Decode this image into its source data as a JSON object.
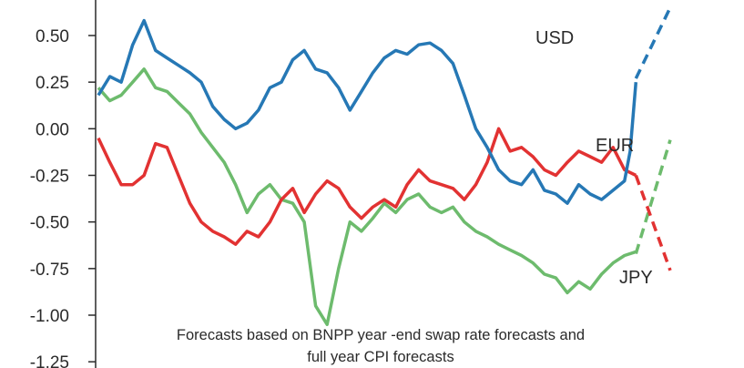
{
  "chart_data": {
    "type": "line",
    "ylim": [
      -1.25,
      0.65
    ],
    "yticks": [
      0.5,
      0.25,
      0.0,
      -0.25,
      -0.5,
      -0.75,
      -1.0,
      -1.25
    ],
    "ytick_labels": [
      "0.50",
      "0.25",
      "0.00",
      "-0.25",
      "-0.50",
      "-0.75",
      "-1.00",
      "-1.25"
    ],
    "x_range": [
      0,
      100
    ],
    "grid": false,
    "legend": "inline labels at line ends",
    "note_lines": [
      "Forecasts based on BNPP year -end swap rate forecasts and",
      "full year CPI forecasts"
    ],
    "series": [
      {
        "name": "USD",
        "color": "#2678b5",
        "history_x": [
          0,
          2,
          4,
          6,
          8,
          10,
          12,
          14,
          16,
          18,
          20,
          22,
          24,
          26,
          28,
          30,
          32,
          34,
          36,
          38,
          40,
          42,
          44,
          46,
          48,
          50,
          52,
          54,
          56,
          58,
          60,
          62,
          64,
          66,
          68,
          70,
          72,
          74,
          76,
          78,
          80,
          82,
          84,
          86,
          88,
          90,
          92,
          93,
          94
        ],
        "history_y": [
          0.18,
          0.28,
          0.25,
          0.45,
          0.58,
          0.42,
          0.38,
          0.34,
          0.3,
          0.25,
          0.12,
          0.05,
          0.0,
          0.03,
          0.1,
          0.22,
          0.25,
          0.37,
          0.42,
          0.32,
          0.3,
          0.22,
          0.1,
          0.2,
          0.3,
          0.38,
          0.42,
          0.4,
          0.45,
          0.46,
          0.42,
          0.35,
          0.18,
          0.0,
          -0.1,
          -0.22,
          -0.28,
          -0.3,
          -0.22,
          -0.33,
          -0.35,
          -0.4,
          -0.3,
          -0.35,
          -0.38,
          -0.33,
          -0.28,
          -0.12,
          0.25
        ],
        "forecast_x": [
          94,
          100
        ],
        "forecast_y": [
          0.27,
          0.65
        ]
      },
      {
        "name": "EUR",
        "color": "#6dbb6d",
        "history_x": [
          0,
          2,
          4,
          6,
          8,
          10,
          12,
          14,
          16,
          18,
          20,
          22,
          24,
          26,
          28,
          30,
          32,
          34,
          36,
          38,
          40,
          42,
          44,
          46,
          48,
          50,
          52,
          54,
          56,
          58,
          60,
          62,
          64,
          66,
          68,
          70,
          72,
          74,
          76,
          78,
          80,
          82,
          84,
          86,
          88,
          90,
          92,
          94
        ],
        "history_y": [
          0.22,
          0.15,
          0.18,
          0.25,
          0.32,
          0.22,
          0.2,
          0.14,
          0.08,
          -0.02,
          -0.1,
          -0.18,
          -0.3,
          -0.45,
          -0.35,
          -0.3,
          -0.38,
          -0.4,
          -0.5,
          -0.95,
          -1.05,
          -0.75,
          -0.5,
          -0.55,
          -0.48,
          -0.4,
          -0.45,
          -0.38,
          -0.35,
          -0.42,
          -0.45,
          -0.42,
          -0.5,
          -0.55,
          -0.58,
          -0.62,
          -0.65,
          -0.68,
          -0.72,
          -0.78,
          -0.8,
          -0.88,
          -0.82,
          -0.86,
          -0.78,
          -0.72,
          -0.68,
          -0.66
        ],
        "forecast_x": [
          94,
          100
        ],
        "forecast_y": [
          -0.67,
          -0.06
        ]
      },
      {
        "name": "JPY",
        "color": "#e23232",
        "history_x": [
          0,
          2,
          4,
          6,
          8,
          10,
          12,
          14,
          16,
          18,
          20,
          22,
          24,
          26,
          28,
          30,
          32,
          34,
          36,
          38,
          40,
          42,
          44,
          46,
          48,
          50,
          52,
          54,
          56,
          58,
          60,
          62,
          64,
          66,
          68,
          70,
          72,
          74,
          76,
          78,
          80,
          82,
          84,
          86,
          88,
          90,
          92,
          94
        ],
        "history_y": [
          -0.05,
          -0.18,
          -0.3,
          -0.3,
          -0.25,
          -0.08,
          -0.1,
          -0.25,
          -0.4,
          -0.5,
          -0.55,
          -0.58,
          -0.62,
          -0.55,
          -0.58,
          -0.5,
          -0.38,
          -0.32,
          -0.45,
          -0.35,
          -0.28,
          -0.32,
          -0.42,
          -0.48,
          -0.42,
          -0.38,
          -0.42,
          -0.3,
          -0.22,
          -0.28,
          -0.3,
          -0.32,
          -0.38,
          -0.3,
          -0.18,
          0.0,
          -0.12,
          -0.1,
          -0.15,
          -0.22,
          -0.25,
          -0.18,
          -0.12,
          -0.15,
          -0.18,
          -0.1,
          -0.22,
          -0.25
        ],
        "forecast_x": [
          94,
          100
        ],
        "forecast_y": [
          -0.25,
          -0.76
        ]
      }
    ]
  }
}
